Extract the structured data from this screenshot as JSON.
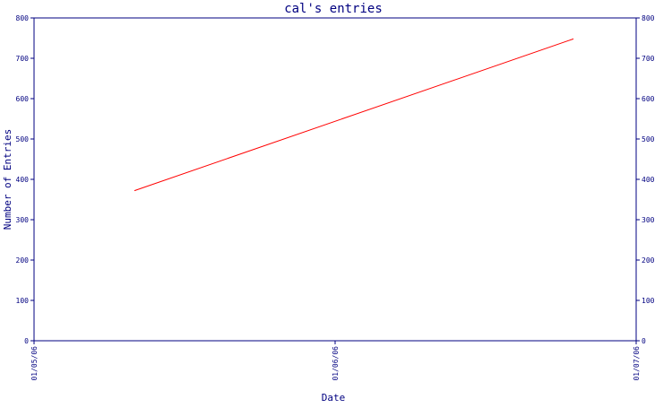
{
  "chart_data": {
    "type": "line",
    "title": "cal's entries",
    "xlabel": "Date",
    "ylabel": "Number of Entries",
    "ylim": [
      0,
      800
    ],
    "yticks": [
      0,
      100,
      200,
      300,
      400,
      500,
      600,
      700,
      800
    ],
    "xticks": [
      "01/05/06",
      "01/06/06",
      "01/07/06"
    ],
    "x_domain": [
      "01/05/06",
      "01/07/06"
    ],
    "grid": false,
    "series": [
      {
        "color": "#ff0000",
        "points": [
          {
            "x": "01/05/06 08:00",
            "y": 372
          },
          {
            "x": "01/06/06 19:00",
            "y": 748
          }
        ]
      }
    ],
    "colors": {
      "axis": "#000080",
      "text": "#000080",
      "line": "#ff0000",
      "background": "#ffffff"
    }
  }
}
